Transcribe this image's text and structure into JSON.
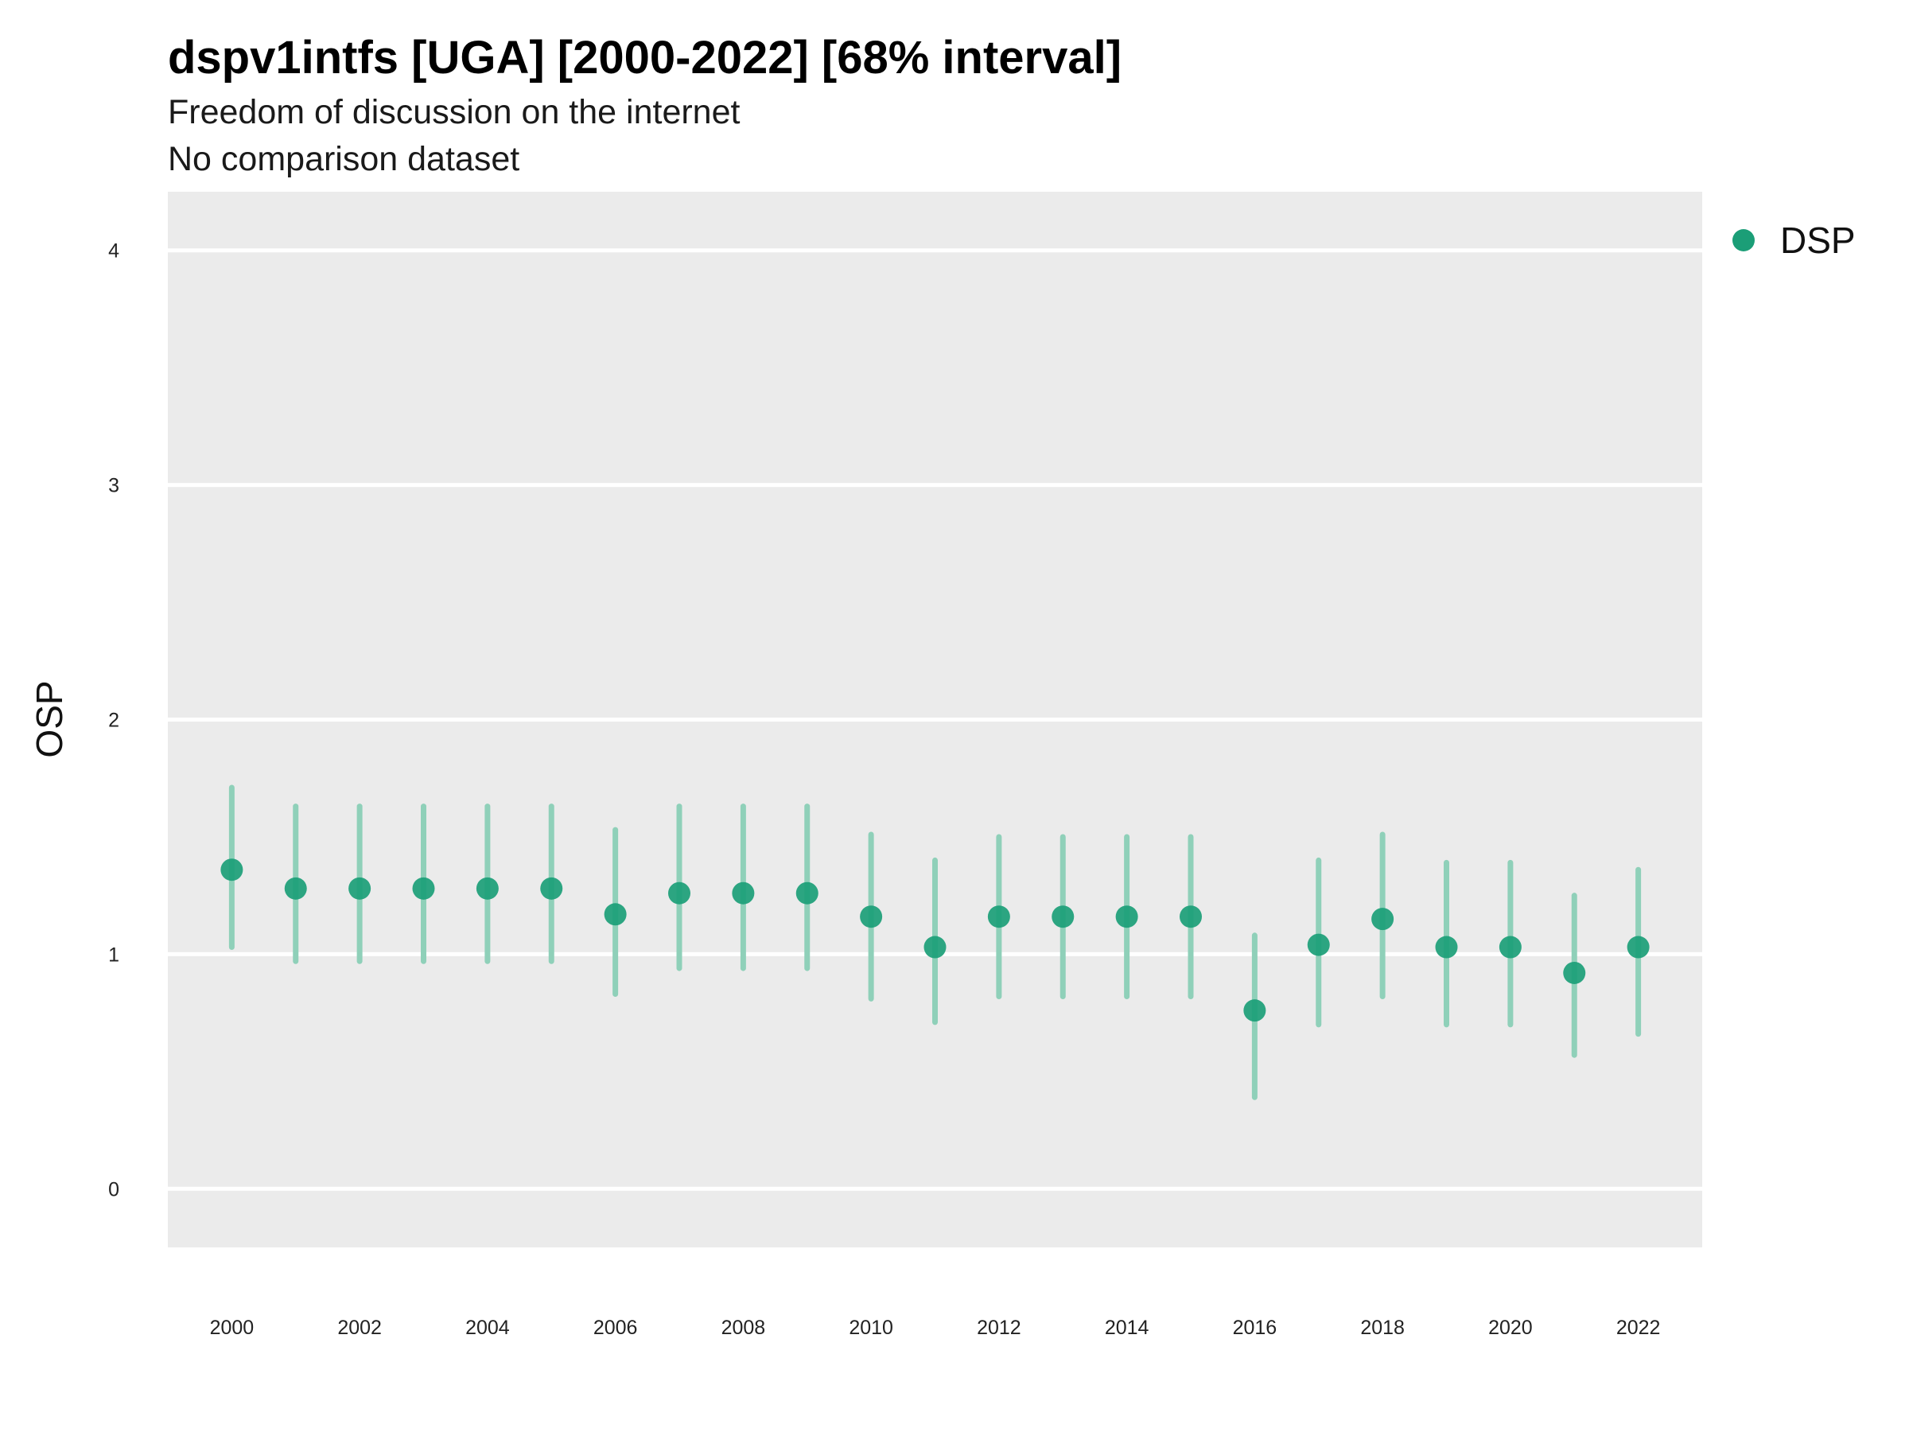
{
  "chart_data": {
    "type": "scatter",
    "title": "dspv1intfs [UGA] [2000-2022] [68% interval]",
    "subtitle": "Freedom of discussion on the internet",
    "subtitle2": "No comparison dataset",
    "xlabel": "",
    "ylabel": "OSP",
    "ylim": [
      -0.25,
      4.25
    ],
    "xlim": [
      1999,
      2023
    ],
    "yticks": [
      0,
      1,
      2,
      3,
      4
    ],
    "xticks": [
      2000,
      2002,
      2004,
      2006,
      2008,
      2010,
      2012,
      2014,
      2016,
      2018,
      2020,
      2022
    ],
    "grid": true,
    "legend_position": "top-right",
    "colors": {
      "point": "#1b9e77",
      "interval": "#8fd0b9",
      "panel": "#ebebeb",
      "grid": "#ffffff"
    },
    "series": [
      {
        "name": "DSP",
        "x": [
          2000,
          2001,
          2002,
          2003,
          2004,
          2005,
          2006,
          2007,
          2008,
          2009,
          2010,
          2011,
          2012,
          2013,
          2014,
          2015,
          2016,
          2017,
          2018,
          2019,
          2020,
          2021,
          2022
        ],
        "y": [
          1.36,
          1.28,
          1.28,
          1.28,
          1.28,
          1.28,
          1.17,
          1.26,
          1.26,
          1.26,
          1.16,
          1.03,
          1.16,
          1.16,
          1.16,
          1.16,
          0.76,
          1.04,
          1.15,
          1.03,
          1.03,
          0.92,
          1.03
        ],
        "lower": [
          1.03,
          0.97,
          0.97,
          0.97,
          0.97,
          0.97,
          0.83,
          0.94,
          0.94,
          0.94,
          0.81,
          0.71,
          0.82,
          0.82,
          0.82,
          0.82,
          0.39,
          0.7,
          0.82,
          0.7,
          0.7,
          0.57,
          0.66
        ],
        "upper": [
          1.71,
          1.63,
          1.63,
          1.63,
          1.63,
          1.63,
          1.53,
          1.63,
          1.63,
          1.63,
          1.51,
          1.4,
          1.5,
          1.5,
          1.5,
          1.5,
          1.08,
          1.4,
          1.51,
          1.39,
          1.39,
          1.25,
          1.36
        ]
      }
    ]
  }
}
